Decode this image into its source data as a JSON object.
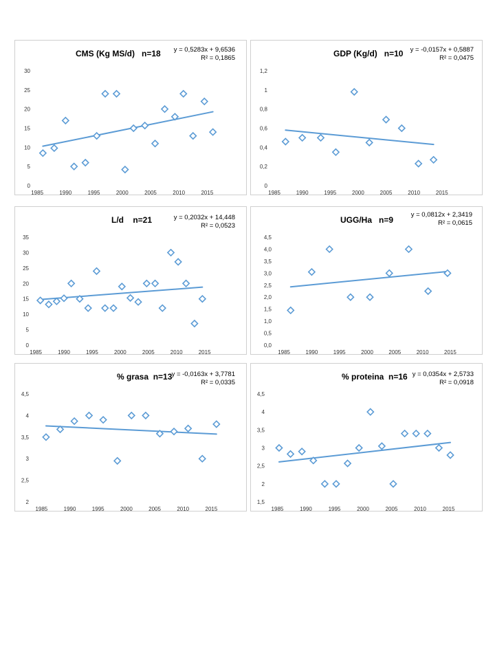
{
  "colors": {
    "marker": "#5b9bd5",
    "trend": "#5b9bd5",
    "border": "#cfcfcf"
  },
  "chart_data": [
    {
      "id": "cms",
      "type": "scatter",
      "title": "CMS (Kg MS/d)   n=18",
      "equation": "y = 0,5283x + 9,6536",
      "r2": "R² = 0,1865",
      "x_ticks": [
        "1985",
        "1990",
        "1995",
        "2000",
        "2005",
        "2010",
        "2015"
      ],
      "x_tick_values": [
        1985,
        1990,
        1995,
        2000,
        2005,
        2010,
        2015
      ],
      "y_ticks": [
        "0",
        "5",
        "10",
        "15",
        "20",
        "25",
        "30"
      ],
      "y_tick_values": [
        0,
        5,
        10,
        15,
        20,
        25,
        30
      ],
      "xlim": [
        1984.5,
        2017.5
      ],
      "ylim": [
        0,
        30
      ],
      "points": [
        [
          1986,
          8.5
        ],
        [
          1988,
          9.8
        ],
        [
          1990,
          17
        ],
        [
          1991.5,
          5
        ],
        [
          1993.5,
          6
        ],
        [
          1995.5,
          13
        ],
        [
          1997,
          24
        ],
        [
          1999,
          24
        ],
        [
          2000.5,
          4.2
        ],
        [
          2002,
          15
        ],
        [
          2004,
          15.7
        ],
        [
          2005.8,
          11
        ],
        [
          2007.5,
          20
        ],
        [
          2009.3,
          18
        ],
        [
          2010.8,
          24
        ],
        [
          2012.5,
          13
        ],
        [
          2014.5,
          22
        ],
        [
          2016,
          14
        ]
      ],
      "trend": {
        "x0": 1986,
        "y0": 10.3,
        "x1": 2016,
        "y1": 19.3
      }
    },
    {
      "id": "gdp",
      "type": "scatter",
      "title": "GDP (Kg/d)   n=10",
      "equation": "y = -0,0157x + 0,5887",
      "r2": "R² = 0,0475",
      "x_ticks": [
        "1985",
        "1990",
        "1995",
        "2000",
        "2005",
        "2010",
        "2015"
      ],
      "x_tick_values": [
        1985,
        1990,
        1995,
        2000,
        2005,
        2010,
        2015
      ],
      "y_ticks": [
        "0",
        "0,2",
        "0,4",
        "0,6",
        "0,8",
        "1",
        "1,2"
      ],
      "y_tick_values": [
        0,
        0.2,
        0.4,
        0.6,
        0.8,
        1.0,
        1.2
      ],
      "xlim": [
        1984.5,
        2016.5
      ],
      "ylim": [
        0,
        1.2
      ],
      "points": [
        [
          1987,
          0.46
        ],
        [
          1990,
          0.5
        ],
        [
          1993.3,
          0.5
        ],
        [
          1996,
          0.35
        ],
        [
          1999.3,
          0.98
        ],
        [
          2002,
          0.45
        ],
        [
          2005,
          0.69
        ],
        [
          2007.8,
          0.6
        ],
        [
          2010.8,
          0.23
        ],
        [
          2013.5,
          0.27
        ]
      ],
      "trend": {
        "x0": 1987,
        "y0": 0.58,
        "x1": 2013.5,
        "y1": 0.43
      }
    },
    {
      "id": "ld",
      "type": "scatter",
      "title": "L/d    n=21",
      "equation": "y = 0,2032x + 14,448",
      "r2": "R² = 0,0523",
      "x_ticks": [
        "1985",
        "1990",
        "1995",
        "2000",
        "2005",
        "2010",
        "2015"
      ],
      "x_tick_values": [
        1985,
        1990,
        1995,
        2000,
        2005,
        2010,
        2015
      ],
      "y_ticks": [
        "0",
        "5",
        "10",
        "15",
        "20",
        "25",
        "30",
        "35"
      ],
      "y_tick_values": [
        0,
        5,
        10,
        15,
        20,
        25,
        30,
        35
      ],
      "xlim": [
        1984.5,
        2017
      ],
      "ylim": [
        0,
        35
      ],
      "points": [
        [
          1985.8,
          14.5
        ],
        [
          1987.3,
          13.2
        ],
        [
          1988.7,
          14.2
        ],
        [
          1990,
          15.2
        ],
        [
          1991.3,
          20
        ],
        [
          1992.8,
          15
        ],
        [
          1994.3,
          12
        ],
        [
          1995.8,
          24
        ],
        [
          1997.3,
          12
        ],
        [
          1998.8,
          12
        ],
        [
          2000.3,
          19
        ],
        [
          2001.8,
          15.3
        ],
        [
          2003.2,
          14
        ],
        [
          2004.7,
          20
        ],
        [
          2006.2,
          20
        ],
        [
          2007.5,
          12
        ],
        [
          2009,
          30
        ],
        [
          2010.3,
          27
        ],
        [
          2011.7,
          20
        ],
        [
          2013.2,
          7
        ],
        [
          2014.6,
          15
        ]
      ],
      "trend": {
        "x0": 1985.8,
        "y0": 14.8,
        "x1": 2014.6,
        "y1": 18.8
      }
    },
    {
      "id": "ugg",
      "type": "scatter",
      "title": "UGG/Ha   n=9",
      "equation": "y = 0,0812x + 2,3419",
      "r2": "R² = 0,0615",
      "x_ticks": [
        "1985",
        "1990",
        "1995",
        "2000",
        "2005",
        "2010",
        "2015"
      ],
      "x_tick_values": [
        1985,
        1990,
        1995,
        2000,
        2005,
        2010,
        2015
      ],
      "y_ticks": [
        "0,0",
        "0,5",
        "1,0",
        "1,5",
        "2,0",
        "2,5",
        "3,0",
        "3,5",
        "4,0",
        "4,5"
      ],
      "y_tick_values": [
        0,
        0.5,
        1.0,
        1.5,
        2.0,
        2.5,
        3.0,
        3.5,
        4.0,
        4.5
      ],
      "xlim": [
        1983.5,
        2016
      ],
      "ylim": [
        0,
        4.5
      ],
      "points": [
        [
          1986.2,
          1.45
        ],
        [
          1990,
          3.05
        ],
        [
          1993.2,
          4.0
        ],
        [
          1997,
          2.0
        ],
        [
          2000.5,
          2.0
        ],
        [
          2004,
          3.0
        ],
        [
          2007.5,
          4.0
        ],
        [
          2011,
          2.25
        ],
        [
          2014.5,
          3.0
        ]
      ],
      "trend": {
        "x0": 1986.2,
        "y0": 2.43,
        "x1": 2014.5,
        "y1": 3.07
      }
    },
    {
      "id": "grasa",
      "type": "scatter",
      "title": "% grasa  n=13",
      "equation": "y = -0,0163x + 3,7781",
      "r2": "R² = 0,0335",
      "x_ticks": [
        "1985",
        "1990",
        "1995",
        "2000",
        "2005",
        "2010",
        "2015"
      ],
      "x_tick_values": [
        1985,
        1990,
        1995,
        2000,
        2005,
        2010,
        2015
      ],
      "y_ticks": [
        "2",
        "2,5",
        "3",
        "3,5",
        "4",
        "4,5"
      ],
      "y_tick_values": [
        2,
        2.5,
        3,
        3.5,
        4,
        4.5
      ],
      "xlim": [
        1983.5,
        2017.5
      ],
      "ylim": [
        2,
        4.5
      ],
      "points": [
        [
          1985.8,
          3.5
        ],
        [
          1988.3,
          3.68
        ],
        [
          1990.8,
          3.87
        ],
        [
          1993.4,
          4.0
        ],
        [
          1995.9,
          3.9
        ],
        [
          1998.4,
          2.95
        ],
        [
          2000.9,
          4.0
        ],
        [
          2003.4,
          4.0
        ],
        [
          2005.9,
          3.58
        ],
        [
          2008.4,
          3.63
        ],
        [
          2010.9,
          3.7
        ],
        [
          2013.4,
          3.0
        ],
        [
          2015.9,
          3.8
        ]
      ],
      "trend": {
        "x0": 1985.8,
        "y0": 3.76,
        "x1": 2015.9,
        "y1": 3.57
      }
    },
    {
      "id": "proteina",
      "type": "scatter",
      "title": "% proteina  n=16",
      "equation": "y = 0,0354x + 2,5733",
      "r2": "R² = 0,0918",
      "x_ticks": [
        "1985",
        "1990",
        "1995",
        "2000",
        "2005",
        "2010",
        "2015"
      ],
      "x_tick_values": [
        1985,
        1990,
        1995,
        2000,
        2005,
        2010,
        2015
      ],
      "y_ticks": [
        "1,5",
        "2",
        "2,5",
        "3",
        "3,5",
        "4",
        "4,5"
      ],
      "y_tick_values": [
        1.5,
        2,
        2.5,
        3,
        3.5,
        4,
        4.5
      ],
      "xlim": [
        1983.5,
        2016.5
      ],
      "ylim": [
        1.5,
        4.5
      ],
      "points": [
        [
          1985.3,
          3.0
        ],
        [
          1987.3,
          2.83
        ],
        [
          1989.3,
          2.9
        ],
        [
          1991.3,
          2.65
        ],
        [
          1993.3,
          2.0
        ],
        [
          1995.3,
          2.0
        ],
        [
          1997.3,
          2.57
        ],
        [
          1999.3,
          3.0
        ],
        [
          2001.3,
          4.0
        ],
        [
          2003.3,
          3.05
        ],
        [
          2005.3,
          2.0
        ],
        [
          2007.3,
          3.4
        ],
        [
          2009.3,
          3.4
        ],
        [
          2011.3,
          3.4
        ],
        [
          2013.3,
          3.0
        ],
        [
          2015.3,
          2.8
        ]
      ],
      "trend": {
        "x0": 1985.3,
        "y0": 2.61,
        "x1": 2015.3,
        "y1": 3.15
      }
    }
  ]
}
